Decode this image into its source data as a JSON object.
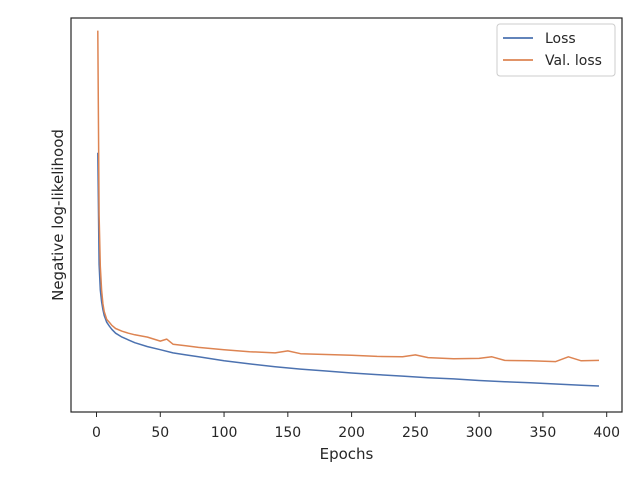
{
  "chart_data": {
    "type": "line",
    "title": "",
    "xlabel": "Epochs",
    "ylabel": "Negative log-likelihood",
    "xlim": [
      -20,
      412
    ],
    "ylim": [
      0.0,
      1.0
    ],
    "x_ticks": [
      0,
      50,
      100,
      150,
      200,
      250,
      300,
      350,
      400
    ],
    "y_ticks_shown": false,
    "grid": false,
    "legend_position": "top-right",
    "series": [
      {
        "name": "Loss",
        "color": "#4c72b0",
        "x": [
          1,
          2,
          3,
          4,
          5,
          6,
          8,
          10,
          12,
          15,
          20,
          25,
          30,
          40,
          50,
          60,
          70,
          80,
          100,
          120,
          140,
          160,
          180,
          200,
          220,
          240,
          260,
          280,
          300,
          320,
          340,
          360,
          380,
          394
        ],
        "y": [
          0.658,
          0.375,
          0.31,
          0.28,
          0.26,
          0.245,
          0.228,
          0.218,
          0.21,
          0.2,
          0.19,
          0.183,
          0.176,
          0.166,
          0.158,
          0.15,
          0.145,
          0.14,
          0.13,
          0.122,
          0.115,
          0.109,
          0.104,
          0.099,
          0.095,
          0.091,
          0.087,
          0.084,
          0.08,
          0.077,
          0.074,
          0.071,
          0.068,
          0.066
        ]
      },
      {
        "name": "Val. loss",
        "color": "#dd8452",
        "x": [
          1,
          2,
          3,
          4,
          5,
          6,
          8,
          10,
          12,
          15,
          20,
          25,
          30,
          40,
          50,
          55,
          60,
          70,
          80,
          100,
          120,
          140,
          150,
          160,
          180,
          200,
          220,
          240,
          250,
          260,
          280,
          300,
          310,
          320,
          340,
          360,
          370,
          380,
          394
        ],
        "y": [
          0.968,
          0.5,
          0.37,
          0.31,
          0.275,
          0.255,
          0.235,
          0.228,
          0.22,
          0.212,
          0.205,
          0.2,
          0.196,
          0.19,
          0.18,
          0.185,
          0.172,
          0.168,
          0.164,
          0.158,
          0.153,
          0.15,
          0.155,
          0.148,
          0.146,
          0.144,
          0.141,
          0.14,
          0.145,
          0.138,
          0.135,
          0.136,
          0.14,
          0.131,
          0.13,
          0.128,
          0.14,
          0.13,
          0.131
        ]
      }
    ]
  }
}
